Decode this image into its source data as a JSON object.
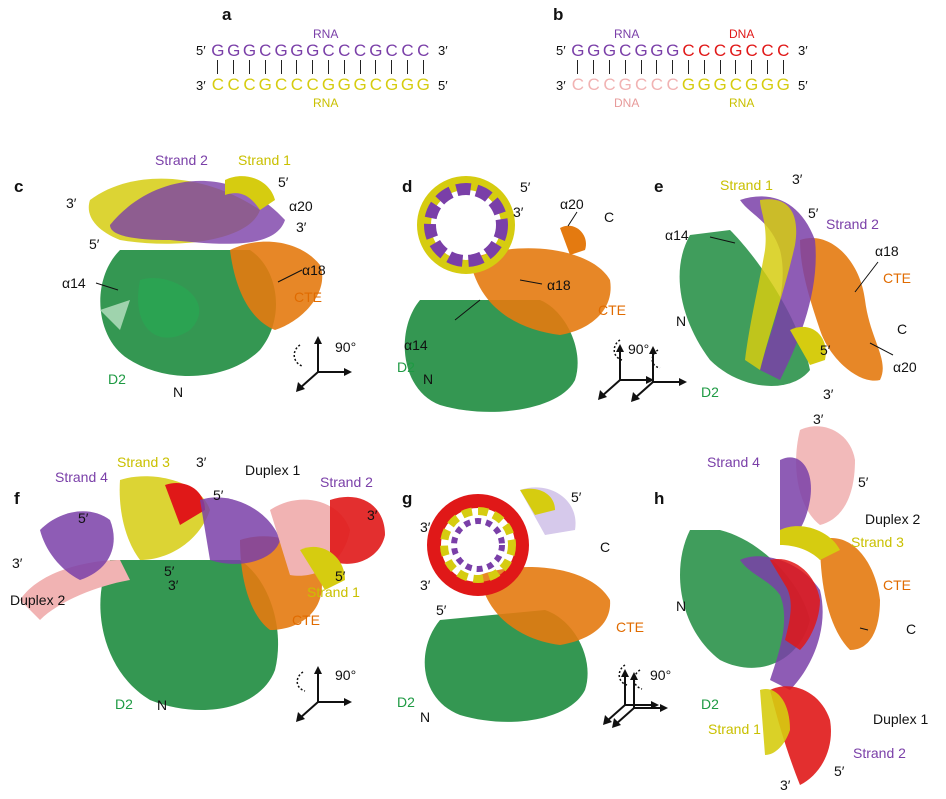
{
  "panels": {
    "a": "a",
    "b": "b",
    "c": "c",
    "d": "d",
    "e": "e",
    "f": "f",
    "g": "g",
    "h": "h"
  },
  "seq_a": {
    "top_label": "RNA",
    "bottom_label": "RNA",
    "top_5": "5′",
    "top_3": "3′",
    "bottom_3": "3′",
    "bottom_5": "5′",
    "top_bases": [
      "G",
      "G",
      "G",
      "C",
      "G",
      "G",
      "G",
      "C",
      "C",
      "C",
      "G",
      "C",
      "C",
      "C"
    ],
    "bottom_bases": [
      "C",
      "C",
      "C",
      "G",
      "C",
      "C",
      "C",
      "G",
      "G",
      "G",
      "C",
      "G",
      "G",
      "G"
    ]
  },
  "seq_b": {
    "top_label_rna": "RNA",
    "top_label_dna": "DNA",
    "bottom_label_dna": "DNA",
    "bottom_label_rna": "RNA",
    "top_5": "5′",
    "top_3": "3′",
    "bottom_3": "3′",
    "bottom_5": "5′",
    "top_bases": [
      "G",
      "G",
      "G",
      "C",
      "G",
      "G",
      "G",
      "C",
      "C",
      "C",
      "G",
      "C",
      "C",
      "C"
    ],
    "bottom_bases": [
      "C",
      "C",
      "C",
      "G",
      "C",
      "C",
      "C",
      "G",
      "G",
      "G",
      "C",
      "G",
      "G",
      "G"
    ]
  },
  "labels": {
    "c": {
      "strand2": "Strand 2",
      "strand1": "Strand 1",
      "p5a": "5′",
      "p3a": "3′",
      "p5b": "5′",
      "p3b": "3′",
      "a20": "α20",
      "a14": "α14",
      "a18": "α18",
      "cte": "CTE",
      "d2": "D2",
      "n": "N",
      "deg": "90°"
    },
    "d": {
      "p5": "5′",
      "p3": "3′",
      "a20": "α20",
      "c": "C",
      "a18": "α18",
      "cte": "CTE",
      "a14": "α14",
      "d2": "D2",
      "n": "N",
      "deg": "90°"
    },
    "e": {
      "strand1": "Strand 1",
      "p3a": "3′",
      "p5a": "5′",
      "strand2": "Strand 2",
      "a14": "α14",
      "a18": "α18",
      "cte": "CTE",
      "n": "N",
      "c": "C",
      "p5b": "5′",
      "a20": "α20",
      "d2": "D2",
      "p3b": "3′"
    },
    "f": {
      "strand3": "Strand 3",
      "p3a": "3′",
      "duplex1": "Duplex 1",
      "strand4": "Strand 4",
      "p5a": "5′",
      "strand2": "Strand 2",
      "p5b": "5′",
      "p3b": "3′",
      "p5c": "5′",
      "p3c": "3′",
      "p3d": "3′",
      "p5d": "5′",
      "duplex2": "Duplex 2",
      "strand1": "Strand 1",
      "cte": "CTE",
      "d2": "D2",
      "n": "N",
      "deg": "90°"
    },
    "g": {
      "p5a": "5′",
      "p3a": "3′",
      "c": "C",
      "p3b": "3′",
      "p5b": "5′",
      "cte": "CTE",
      "d2": "D2",
      "n": "N"
    },
    "h": {
      "p3a": "3′",
      "strand4": "Strand 4",
      "p5a": "5′",
      "duplex2": "Duplex 2",
      "strand3": "Strand 3",
      "cte": "CTE",
      "n": "N",
      "c": "C",
      "deg": "90°",
      "d2": "D2",
      "duplex1": "Duplex 1",
      "strand1": "Strand 1",
      "strand2": "Strand 2",
      "p3b": "3′",
      "p5b": "5′"
    }
  },
  "colors": {
    "purple": "#7a3fa8",
    "yellow": "#d6cc10",
    "green": "#1e8c3f",
    "orange": "#e47a10",
    "red": "#e01818",
    "pink": "#f1b3b3"
  }
}
